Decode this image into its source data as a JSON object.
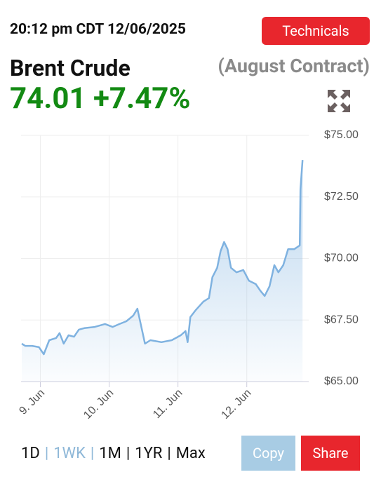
{
  "header": {
    "timestamp": "20:12 pm CDT 12/06/2025",
    "technicals_button": "Technicals",
    "name": "Brent Crude",
    "contract": "(August Contract)",
    "price": "74.01",
    "change": "+7.47%"
  },
  "chart_data": {
    "type": "area",
    "color": "#7fb2e0",
    "x": [
      8.73,
      8.78,
      8.88,
      8.98,
      9.05,
      9.13,
      9.23,
      9.28,
      9.34,
      9.41,
      9.49,
      9.56,
      9.64,
      9.79,
      9.94,
      10.05,
      10.15,
      10.25,
      10.35,
      10.41,
      10.45,
      10.52,
      10.6,
      10.76,
      10.91,
      11.04,
      11.11,
      11.14,
      11.18,
      11.26,
      11.37,
      11.45,
      11.5,
      11.57,
      11.62,
      11.67,
      11.72,
      11.77,
      11.85,
      11.95,
      12.03,
      12.13,
      12.2,
      12.26,
      12.33,
      12.4,
      12.46,
      12.53,
      12.6,
      12.69,
      12.77,
      12.78,
      12.81
    ],
    "values": [
      66.54,
      66.45,
      66.45,
      66.4,
      66.11,
      66.68,
      66.77,
      66.97,
      66.54,
      66.88,
      66.82,
      67.11,
      67.17,
      67.22,
      67.34,
      67.22,
      67.34,
      67.45,
      67.68,
      67.96,
      67.45,
      66.54,
      66.68,
      66.6,
      66.68,
      66.88,
      67.05,
      66.6,
      67.62,
      67.91,
      68.25,
      68.39,
      69.24,
      69.62,
      70.3,
      70.67,
      70.38,
      69.62,
      69.44,
      69.53,
      69.1,
      68.96,
      68.68,
      68.48,
      68.87,
      69.73,
      69.44,
      69.73,
      70.38,
      70.38,
      70.53,
      72.81,
      74.0
    ],
    "xlim": [
      8.72,
      12.9
    ],
    "xticks": [
      {
        "value": 9,
        "label": "9. Jun"
      },
      {
        "value": 10,
        "label": "10. Jun"
      },
      {
        "value": 11,
        "label": "11. Jun"
      },
      {
        "value": 12,
        "label": "12. Jun"
      }
    ],
    "ylim": [
      65,
      75
    ],
    "yticks": [
      {
        "value": 65,
        "label": "$65.00"
      },
      {
        "value": 67.5,
        "label": "$67.50"
      },
      {
        "value": 70,
        "label": "$70.00"
      },
      {
        "value": 72.5,
        "label": "$72.50"
      },
      {
        "value": 75,
        "label": "$75.00"
      }
    ],
    "grid": true
  },
  "range": {
    "options": [
      "1D",
      "1WK",
      "1M",
      "1YR",
      "Max"
    ],
    "separator": "|"
  },
  "actions": {
    "copy": "Copy",
    "share": "Share"
  }
}
